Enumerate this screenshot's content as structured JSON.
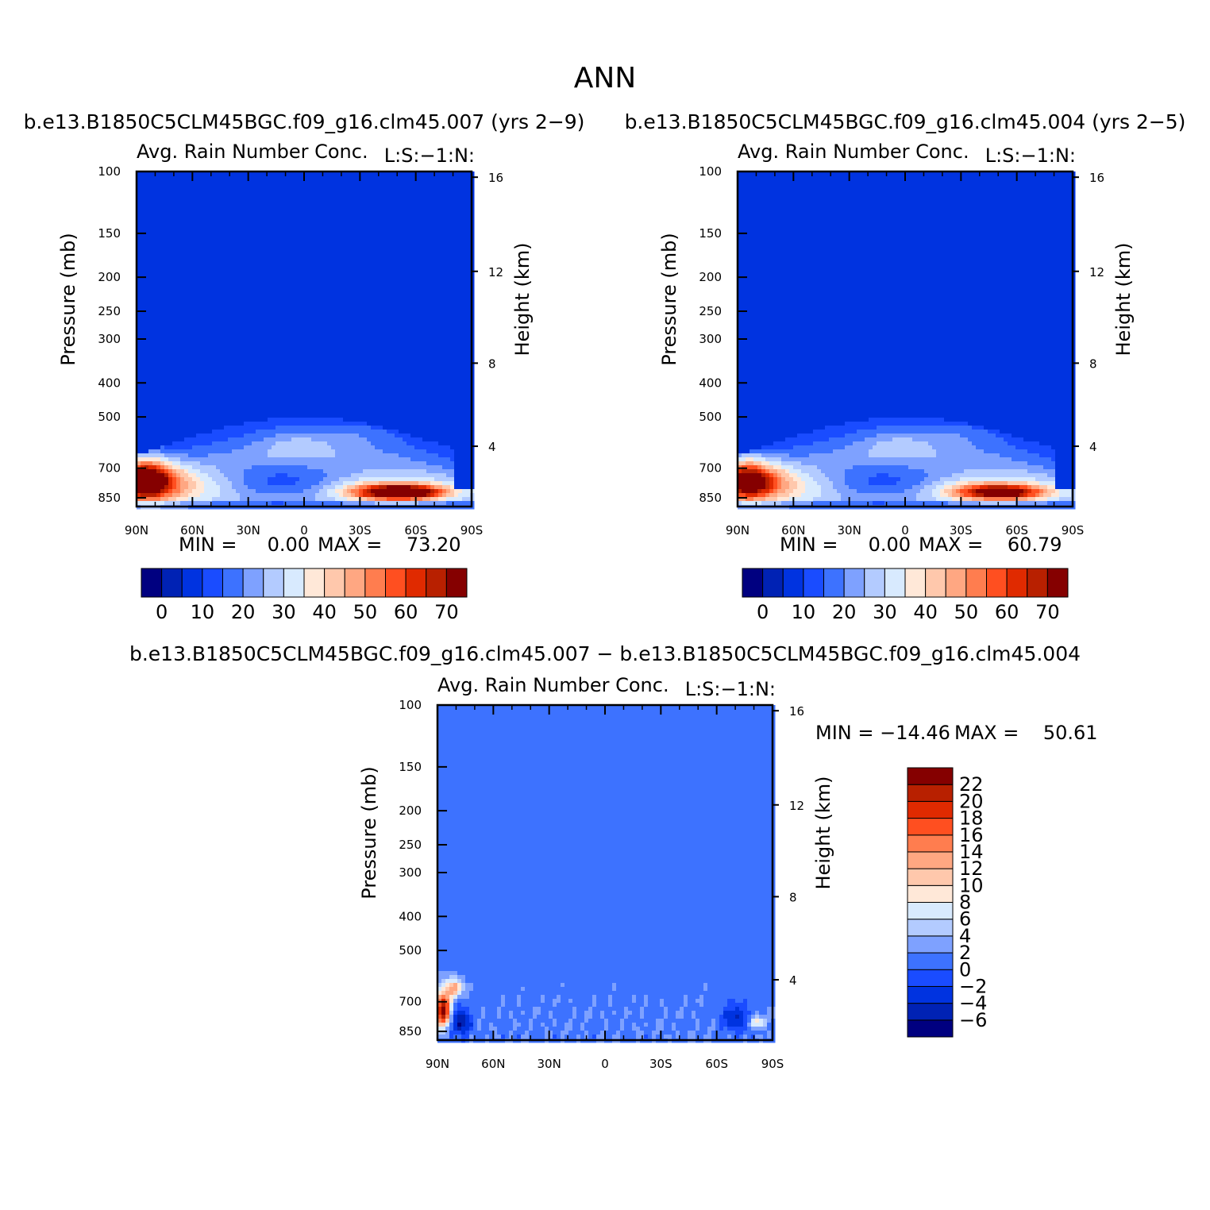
{
  "figure": {
    "title": "ANN",
    "colors": {
      "abs_levels": [
        "#000080",
        "#0022b4",
        "#0033e0",
        "#1a4cff",
        "#3d72ff",
        "#7ea1ff",
        "#b3cbff",
        "#d8eafe",
        "#ffe8d8",
        "#ffc8ac",
        "#ffa782",
        "#ff7d4f",
        "#ff4f20",
        "#e02a00",
        "#b82000",
        "#850000"
      ],
      "diff_levels": [
        "#000080",
        "#0022b4",
        "#0033e0",
        "#1a4cff",
        "#3d72ff",
        "#7ea1ff",
        "#b3cbff",
        "#d8eafe",
        "#ffe8d8",
        "#ffc8ac",
        "#ffa782",
        "#ff7d4f",
        "#ff4f20",
        "#e02a00",
        "#b82000",
        "#850000"
      ]
    }
  },
  "chart_data": [
    {
      "type": "heatmap",
      "title": "b.e13.B1850C5CLM45BGC.f09_g16.clm45.007 (yrs 2−9)",
      "subtitle_left": "Avg. Rain Number Conc.",
      "subtitle_right": "L:S:−1:N:",
      "ylabel": "Pressure (mb)",
      "ylabel_right": "Height (km)",
      "x_ticks": [
        "90N",
        "60N",
        "30N",
        "0",
        "30S",
        "60S",
        "90S"
      ],
      "y_ticks": [
        "100",
        "150",
        "200",
        "250",
        "300",
        "400",
        "500",
        "700",
        "850"
      ],
      "y_ticks_right": [
        "16",
        "12",
        "8",
        "4"
      ],
      "min_text": "MIN =     0.00",
      "max_text": "MAX =    73.20",
      "colorbar_labels": [
        "0",
        "10",
        "20",
        "30",
        "40",
        "50",
        "60",
        "70"
      ]
    },
    {
      "type": "heatmap",
      "title": "b.e13.B1850C5CLM45BGC.f09_g16.clm45.004 (yrs 2−5)",
      "subtitle_left": "Avg. Rain Number Conc.",
      "subtitle_right": "L:S:−1:N:",
      "ylabel": "Pressure (mb)",
      "ylabel_right": "Height (km)",
      "x_ticks": [
        "90N",
        "60N",
        "30N",
        "0",
        "30S",
        "60S",
        "90S"
      ],
      "y_ticks": [
        "100",
        "150",
        "200",
        "250",
        "300",
        "400",
        "500",
        "700",
        "850"
      ],
      "y_ticks_right": [
        "16",
        "12",
        "8",
        "4"
      ],
      "min_text": "MIN =     0.00",
      "max_text": "MAX =    60.79",
      "colorbar_labels": [
        "0",
        "10",
        "20",
        "30",
        "40",
        "50",
        "60",
        "70"
      ]
    },
    {
      "type": "heatmap",
      "title": "b.e13.B1850C5CLM45BGC.f09_g16.clm45.007 − b.e13.B1850C5CLM45BGC.f09_g16.clm45.004",
      "subtitle_left": "Avg. Rain Number Conc.",
      "subtitle_right": "L:S:−1:N:",
      "ylabel": "Pressure (mb)",
      "ylabel_right": "Height (km)",
      "x_ticks": [
        "90N",
        "60N",
        "30N",
        "0",
        "30S",
        "60S",
        "90S"
      ],
      "y_ticks": [
        "100",
        "150",
        "200",
        "250",
        "300",
        "400",
        "500",
        "700",
        "850"
      ],
      "y_ticks_right": [
        "16",
        "12",
        "8",
        "4"
      ],
      "min_text": "MIN = −14.46",
      "max_text": "MAX =    50.61",
      "colorbar_labels": [
        "22",
        "20",
        "18",
        "16",
        "14",
        "12",
        "10",
        "8",
        "6",
        "4",
        "2",
        "0",
        "−2",
        "−4",
        "−6"
      ]
    }
  ]
}
